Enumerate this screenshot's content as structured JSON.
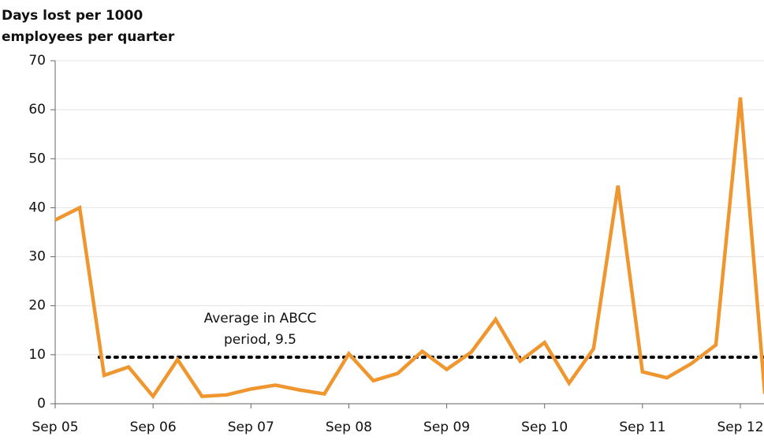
{
  "chart_data": {
    "type": "line",
    "y_title": [
      "Days lost per 1000",
      "employees per quarter"
    ],
    "categories": [
      "Sep 05",
      null,
      null,
      null,
      "Sep 06",
      null,
      null,
      null,
      "Sep 07",
      null,
      null,
      null,
      "Sep 08",
      null,
      null,
      null,
      "Sep 09",
      null,
      null,
      null,
      "Sep 10",
      null,
      null,
      null,
      "Sep 11",
      null,
      null,
      null,
      "Sep 12",
      null
    ],
    "series": [
      {
        "name": "Days lost",
        "color": "#f0962e",
        "values": [
          37.5,
          40,
          5.8,
          7.5,
          1.5,
          9,
          1.5,
          1.8,
          3,
          3.8,
          2.8,
          2,
          10.2,
          4.7,
          6.2,
          10.7,
          7,
          10.5,
          17.2,
          8.7,
          12.5,
          4.2,
          11.2,
          44.5,
          6.5,
          5.3,
          8.2,
          12,
          62.5,
          2
        ]
      }
    ],
    "reference_line": {
      "value": 9.5,
      "color": "#000000",
      "label": [
        "Average in ABCC",
        "period, 9.5"
      ]
    },
    "ylim": [
      0,
      70
    ],
    "yticks": [
      0,
      10,
      20,
      30,
      40,
      50,
      60,
      70
    ],
    "grid": true
  }
}
